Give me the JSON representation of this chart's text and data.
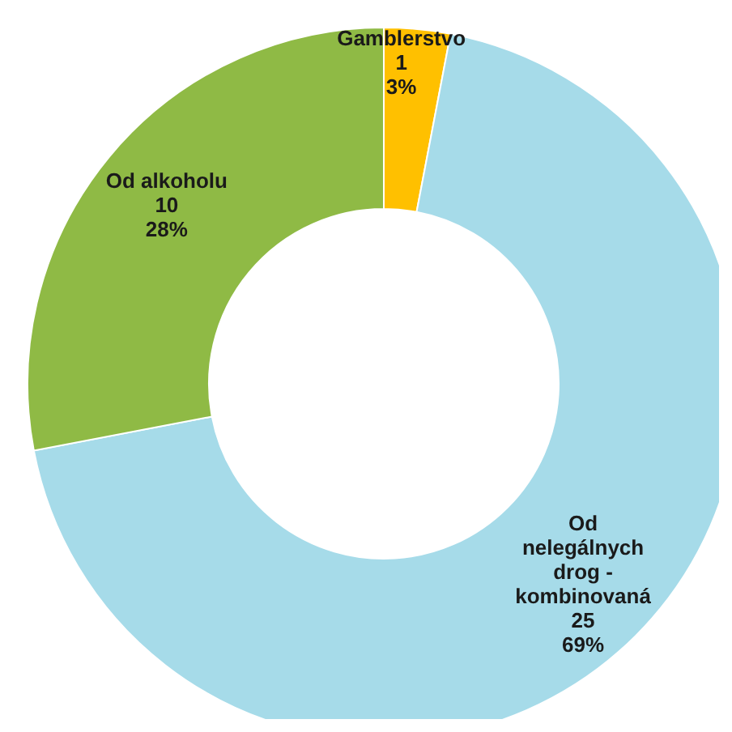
{
  "chart_data": {
    "type": "donut",
    "categories": [
      "Gamblerstvo",
      "Od nelegálnych drog - kombinovaná",
      "Od alkoholu"
    ],
    "values": [
      3,
      69,
      28
    ],
    "value_labels": [
      "1\n3%",
      "25\n69%",
      "10\n28%"
    ],
    "colors": [
      "#ffc000",
      "#a6dbe9",
      "#8fba45"
    ]
  }
}
